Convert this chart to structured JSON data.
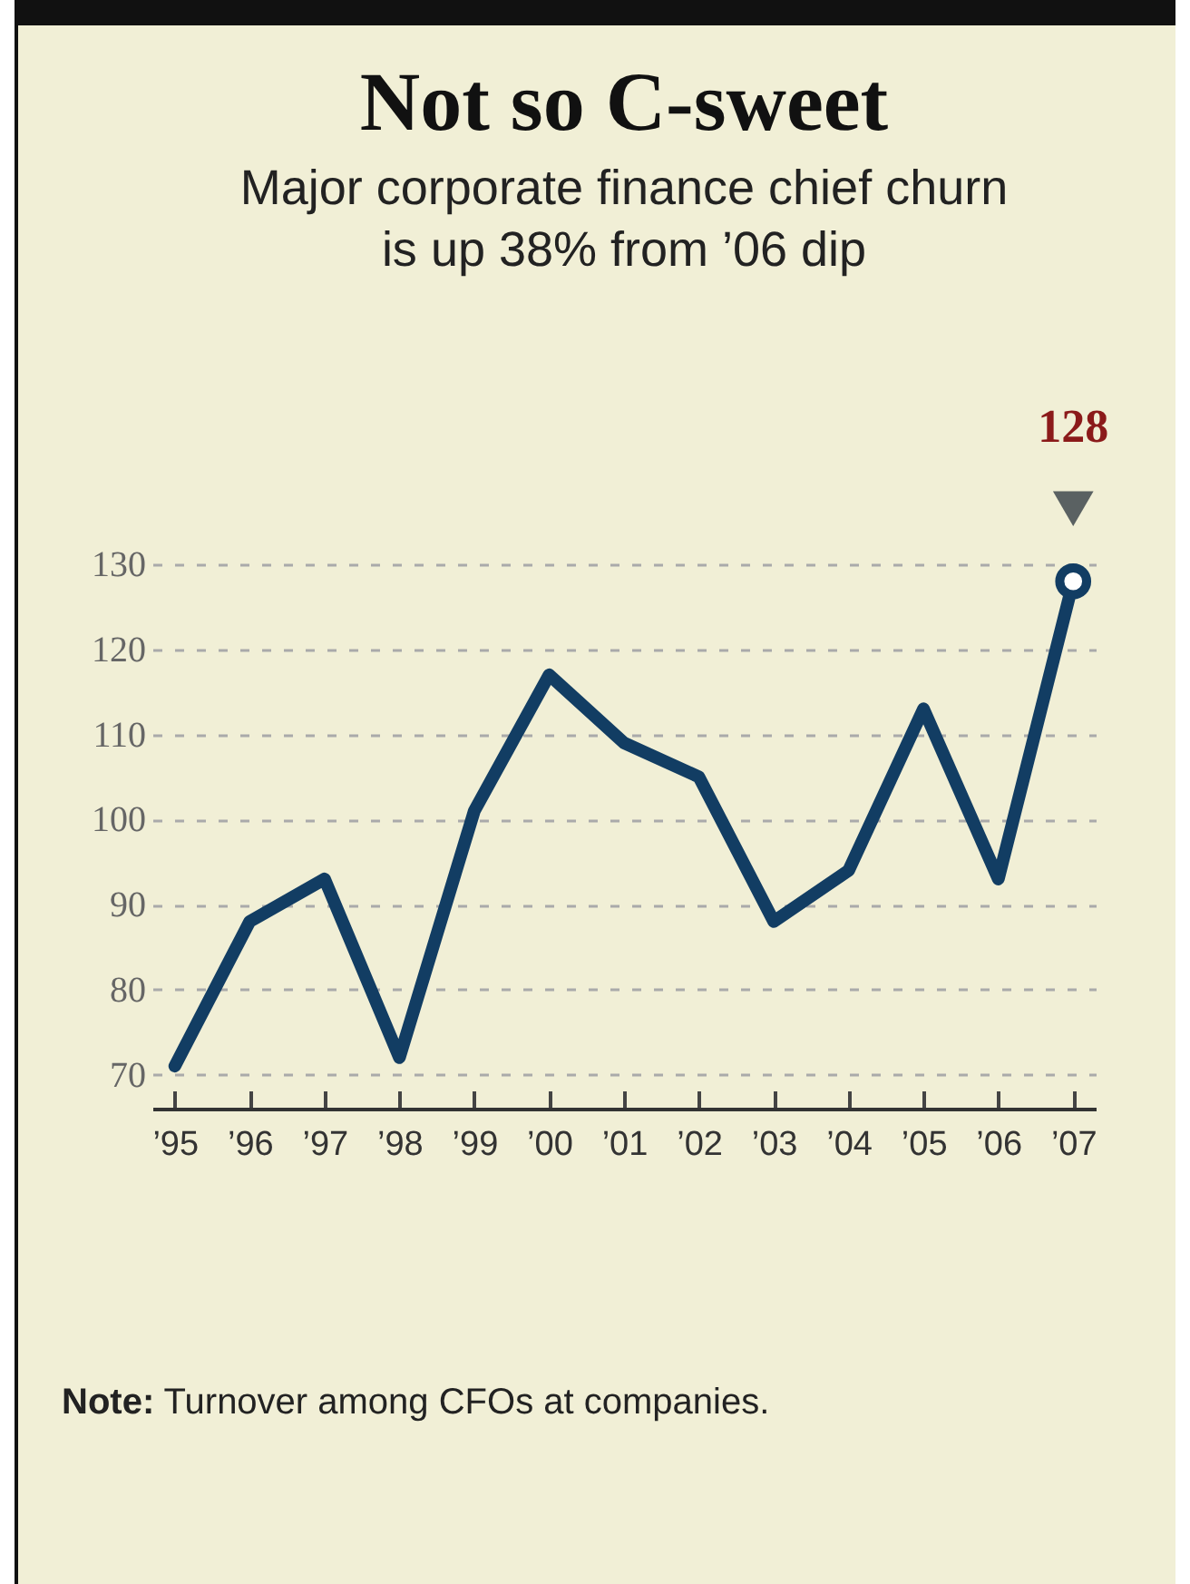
{
  "chart_data": {
    "type": "line",
    "title": "Not so C-sweet",
    "subtitle": "Major corporate finance chief churn\nis up 38% from ’06 dip",
    "categories": [
      "’95",
      "’96",
      "’97",
      "’98",
      "’99",
      "’00",
      "’01",
      "’02",
      "’03",
      "’04",
      "’05",
      "’06",
      "’07"
    ],
    "series": [
      {
        "color": "#123d63",
        "values": [
          71,
          88,
          93,
          72,
          101,
          117,
          109,
          105,
          88,
          94,
          113,
          93,
          128
        ]
      }
    ],
    "ylim": [
      66,
      130
    ],
    "yticks": [
      70,
      80,
      90,
      100,
      110,
      120,
      130
    ],
    "grid": "y",
    "marker": "none",
    "line_style": "solid",
    "annotations": [
      {
        "text": "128",
        "x": "’07",
        "y": 128
      },
      "Note: Turnover among CFOs at companies."
    ]
  }
}
